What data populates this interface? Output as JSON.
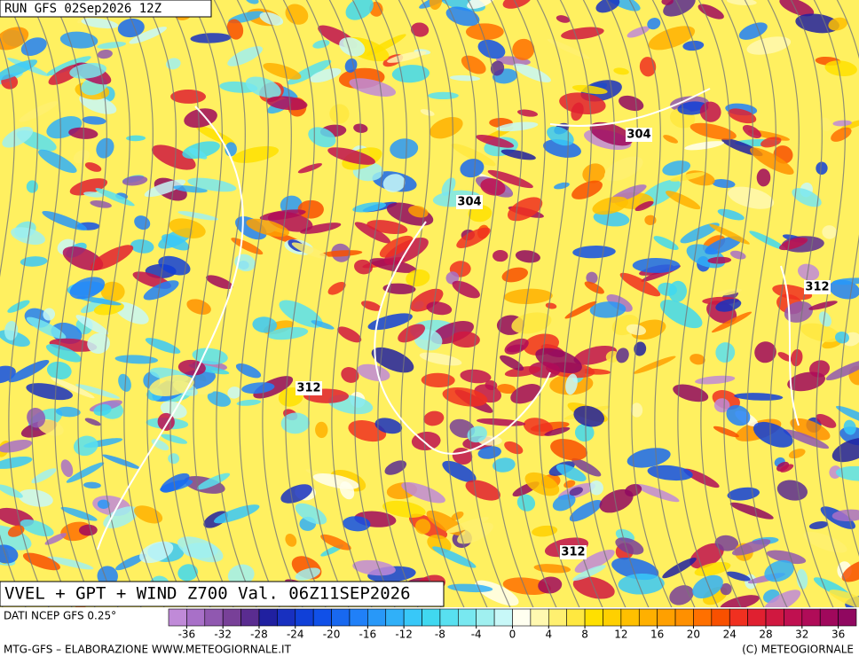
{
  "header": {
    "run": "RUN GFS 02Sep2026 12Z"
  },
  "map": {
    "title": "VVEL + GPT + WIND Z700 Val. 06Z11SEP2026",
    "contour_labels": [
      "304",
      "304",
      "312",
      "312",
      "312"
    ]
  },
  "legend": {
    "source": "DATI NCEP GFS 0.25°",
    "lim": [
      -38,
      38
    ],
    "ticks": [
      -36,
      -32,
      -28,
      -24,
      -20,
      -16,
      -12,
      -8,
      -4,
      0,
      4,
      8,
      12,
      16,
      20,
      24,
      28,
      32,
      36
    ],
    "colors": [
      "#c08ad8",
      "#a870c8",
      "#9058b0",
      "#784098",
      "#5a2c90",
      "#2020a0",
      "#1830c0",
      "#1040d8",
      "#1050e8",
      "#1868f0",
      "#2080f8",
      "#2898f8",
      "#30b0f8",
      "#38c8f8",
      "#40d8f0",
      "#58e0f0",
      "#78e8f0",
      "#a0f0f0",
      "#c8f8f8",
      "#fffff0",
      "#fff8b0",
      "#fff070",
      "#ffe840",
      "#ffe000",
      "#ffd000",
      "#ffc000",
      "#ffb000",
      "#ffa000",
      "#ff9000",
      "#ff7000",
      "#f85000",
      "#f03020",
      "#e02030",
      "#d01840",
      "#c01050",
      "#b00c58",
      "#a0085c",
      "#900860"
    ]
  },
  "footer": {
    "left": "MTG-GFS – ELABORAZIONE WWW.METEOGIORNALE.IT",
    "right": "(C) METEOGIORNALE"
  }
}
